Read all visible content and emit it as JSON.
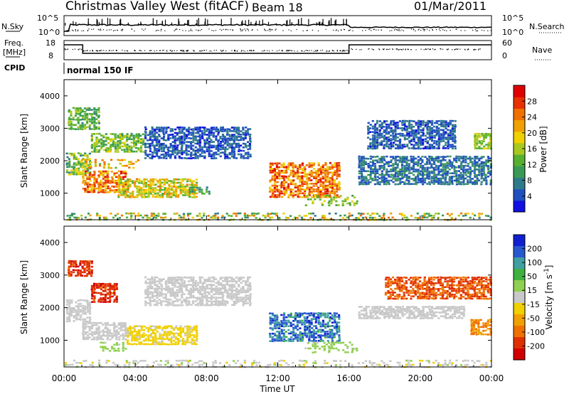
{
  "header": {
    "title": "Christmas Valley West (fitACF)",
    "beam": "Beam 18",
    "date": "01/Mar/2011"
  },
  "status_panels": {
    "nsky_label": "N.Sky",
    "nsky_ticks": [
      "10^5",
      "10^0"
    ],
    "nsearch_label": "N.Search",
    "nsearch_ticks": [
      "10^5",
      "10^0"
    ],
    "freq_label": "Freq.",
    "freq_unit": "[MHz]",
    "freq_ticks": [
      "18",
      "8"
    ],
    "nave_label": "Nave",
    "nave_ticks": [
      "60",
      "0"
    ],
    "cpid_label": "CPID",
    "cpid_value": "normal 150 IF"
  },
  "chart_data": [
    {
      "type": "heatmap",
      "name": "power",
      "ylabel": "Slant Range [km]",
      "yticks": [
        1000,
        2000,
        3000,
        4000
      ],
      "ylim": [
        180,
        4500
      ],
      "xlim": [
        0,
        24
      ],
      "colorbar_label": "Power [dB]",
      "colorbar_ticks": [
        "4",
        "8",
        "12",
        "16",
        "20",
        "24",
        "28"
      ],
      "colorbar_colors": [
        "#1010e0",
        "#2050c0",
        "#2f7a8a",
        "#3a9a55",
        "#58b030",
        "#a8c820",
        "#f0d000",
        "#f0a000",
        "#f07000",
        "#e83000",
        "#e00000"
      ],
      "echo_regions": [
        {
          "t": [
            0.1,
            1.5
          ],
          "r": [
            1600,
            2300
          ],
          "v": [
            8,
            20
          ]
        },
        {
          "t": [
            1.0,
            3.5
          ],
          "r": [
            1050,
            1750
          ],
          "v": [
            18,
            30
          ]
        },
        {
          "t": [
            0.8,
            4.2
          ],
          "r": [
            1800,
            2100
          ],
          "v": [
            14,
            26
          ]
        },
        {
          "t": [
            0.2,
            2.0
          ],
          "r": [
            3000,
            3700
          ],
          "v": [
            8,
            16
          ]
        },
        {
          "t": [
            1.5,
            4.5
          ],
          "r": [
            2300,
            2900
          ],
          "v": [
            10,
            18
          ]
        },
        {
          "t": [
            3.0,
            7.5
          ],
          "r": [
            900,
            1500
          ],
          "v": [
            12,
            24
          ]
        },
        {
          "t": [
            4.5,
            10.5
          ],
          "r": [
            2100,
            3100
          ],
          "v": [
            2,
            8
          ]
        },
        {
          "t": [
            7.0,
            8.2
          ],
          "r": [
            1000,
            1250
          ],
          "v": [
            8,
            14
          ]
        },
        {
          "t": [
            11.5,
            15.5
          ],
          "r": [
            900,
            2000
          ],
          "v": [
            18,
            30
          ]
        },
        {
          "t": [
            13.5,
            16.5
          ],
          "r": [
            650,
            1000
          ],
          "v": [
            10,
            20
          ]
        },
        {
          "t": [
            16.5,
            24
          ],
          "r": [
            1300,
            2200
          ],
          "v": [
            3,
            10
          ]
        },
        {
          "t": [
            17.0,
            22.0
          ],
          "r": [
            2400,
            3300
          ],
          "v": [
            2,
            8
          ]
        },
        {
          "t": [
            23.0,
            24
          ],
          "r": [
            2400,
            2900
          ],
          "v": [
            12,
            18
          ]
        },
        {
          "t": [
            0,
            24
          ],
          "r": [
            200,
            450
          ],
          "v": [
            6,
            26
          ]
        }
      ]
    },
    {
      "type": "heatmap",
      "name": "velocity",
      "ylabel": "Slant Range [km]",
      "yticks": [
        1000,
        2000,
        3000,
        4000
      ],
      "ylim": [
        180,
        4500
      ],
      "xlim": [
        0,
        24
      ],
      "xlabel": "Time UT",
      "xticks": [
        "00:00",
        "04:00",
        "08:00",
        "12:00",
        "16:00",
        "20:00",
        "00:00"
      ],
      "colorbar_label": "Velocity [m s^-1]",
      "colorbar_ticks": [
        "200",
        "100",
        "50",
        "15",
        "-15",
        "-50",
        "-100",
        "-200"
      ],
      "colorbar_colors": [
        "#1020d0",
        "#2858d0",
        "#40a0a0",
        "#40b040",
        "#90d050",
        "#c8c8c8",
        "#f0d000",
        "#f0a000",
        "#f07000",
        "#e03000",
        "#d00000"
      ],
      "echo_regions": [
        {
          "t": [
            0.1,
            1.5
          ],
          "r": [
            1600,
            2300
          ],
          "v": [
            -5,
            5
          ]
        },
        {
          "t": [
            1.0,
            3.5
          ],
          "r": [
            1050,
            1600
          ],
          "v": [
            -5,
            10
          ]
        },
        {
          "t": [
            0.2,
            1.6
          ],
          "r": [
            3000,
            3500
          ],
          "v": [
            -220,
            -150
          ]
        },
        {
          "t": [
            1.5,
            3.0
          ],
          "r": [
            2200,
            2800
          ],
          "v": [
            -220,
            -150
          ]
        },
        {
          "t": [
            2.0,
            3.5
          ],
          "r": [
            700,
            1000
          ],
          "v": [
            20,
            50
          ]
        },
        {
          "t": [
            3.5,
            7.5
          ],
          "r": [
            900,
            1500
          ],
          "v": [
            -40,
            -20
          ]
        },
        {
          "t": [
            4.5,
            10.5
          ],
          "r": [
            2100,
            3000
          ],
          "v": [
            -10,
            10
          ]
        },
        {
          "t": [
            11.5,
            15.5
          ],
          "r": [
            1000,
            1900
          ],
          "v": [
            100,
            220
          ]
        },
        {
          "t": [
            13.5,
            16.5
          ],
          "r": [
            650,
            1000
          ],
          "v": [
            20,
            60
          ]
        },
        {
          "t": [
            16.5,
            22.5
          ],
          "r": [
            1700,
            2100
          ],
          "v": [
            -10,
            10
          ]
        },
        {
          "t": [
            22.8,
            24
          ],
          "r": [
            1200,
            1700
          ],
          "v": [
            -150,
            -80
          ]
        },
        {
          "t": [
            18.0,
            24
          ],
          "r": [
            2300,
            3000
          ],
          "v": [
            -200,
            -120
          ]
        },
        {
          "t": [
            0,
            24
          ],
          "r": [
            200,
            450
          ],
          "v": [
            -30,
            30
          ]
        }
      ]
    }
  ]
}
